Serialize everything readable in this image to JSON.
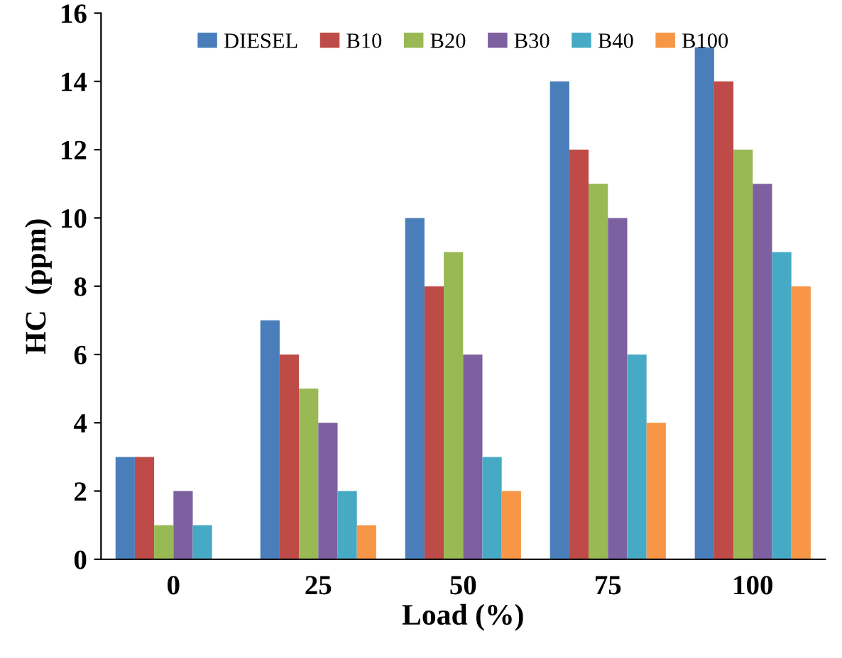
{
  "chart_data": {
    "type": "bar",
    "xlabel": "Load (%)",
    "ylabel": "HC  (ppm)",
    "categories": [
      "0",
      "25",
      "50",
      "75",
      "100"
    ],
    "series": [
      {
        "name": "DIESEL",
        "color": "#4a7ebb",
        "values": [
          3,
          7,
          10,
          14,
          15
        ]
      },
      {
        "name": "B10",
        "color": "#be4b48",
        "values": [
          3,
          6,
          8,
          12,
          14
        ]
      },
      {
        "name": "B20",
        "color": "#98b954",
        "values": [
          1,
          5,
          9,
          11,
          12
        ]
      },
      {
        "name": "B30",
        "color": "#7d60a0",
        "values": [
          2,
          4,
          6,
          10,
          11
        ]
      },
      {
        "name": "B40",
        "color": "#46aac5",
        "values": [
          1,
          2,
          3,
          6,
          9
        ]
      },
      {
        "name": "B100",
        "color": "#f79646",
        "values": [
          0,
          1,
          2,
          4,
          8
        ]
      }
    ],
    "ylim": [
      0,
      16
    ],
    "yticks": [
      0,
      2,
      4,
      6,
      8,
      10,
      12,
      14,
      16
    ],
    "grid": false,
    "legend": "top"
  }
}
